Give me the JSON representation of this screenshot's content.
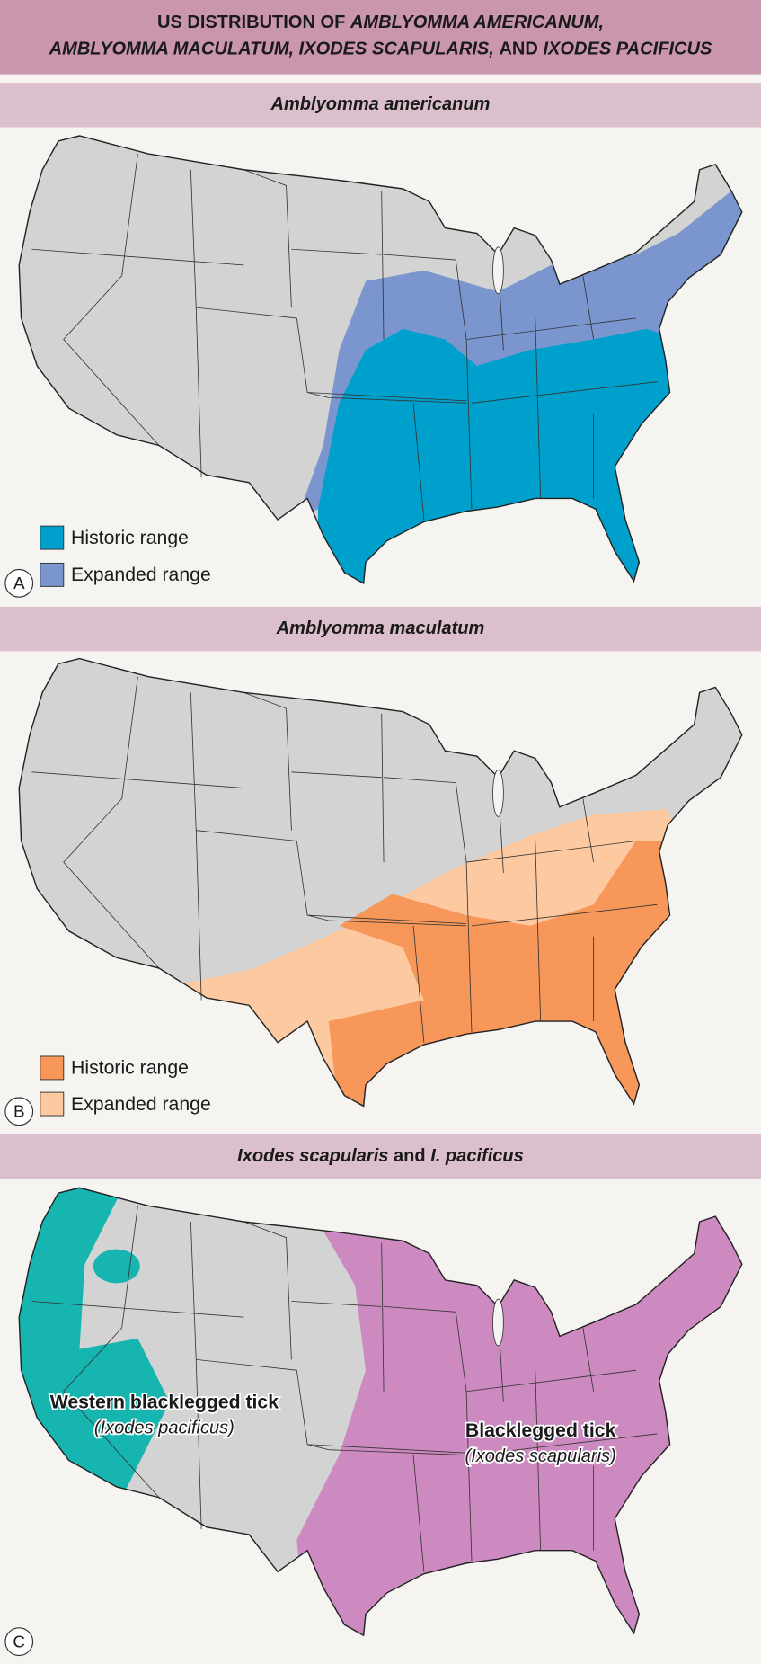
{
  "header": {
    "title_parts": [
      "US DISTRIBUTION OF",
      "AMBLYOMMA AMERICANUM,",
      "AMBLYOMMA MACULATUM, IXODES SCAPULARIS,",
      "AND",
      "IXODES PACIFICUS"
    ]
  },
  "panels": [
    {
      "title": "Amblyomma americanum",
      "legend": [
        "Historic range",
        "Expanded range"
      ],
      "letter": "A"
    },
    {
      "title": "Amblyomma maculatum",
      "legend": [
        "Historic range",
        "Expanded range"
      ],
      "letter": "B"
    },
    {
      "title_parts": [
        "Ixodes scapularis",
        "and",
        "I. pacificus"
      ],
      "labels": [
        {
          "name": "Western blacklegged tick",
          "species": "(Ixodes pacificus)"
        },
        {
          "name": "Blacklegged tick",
          "species": "(Ixodes scapularis)"
        }
      ],
      "letter": "C"
    }
  ]
}
